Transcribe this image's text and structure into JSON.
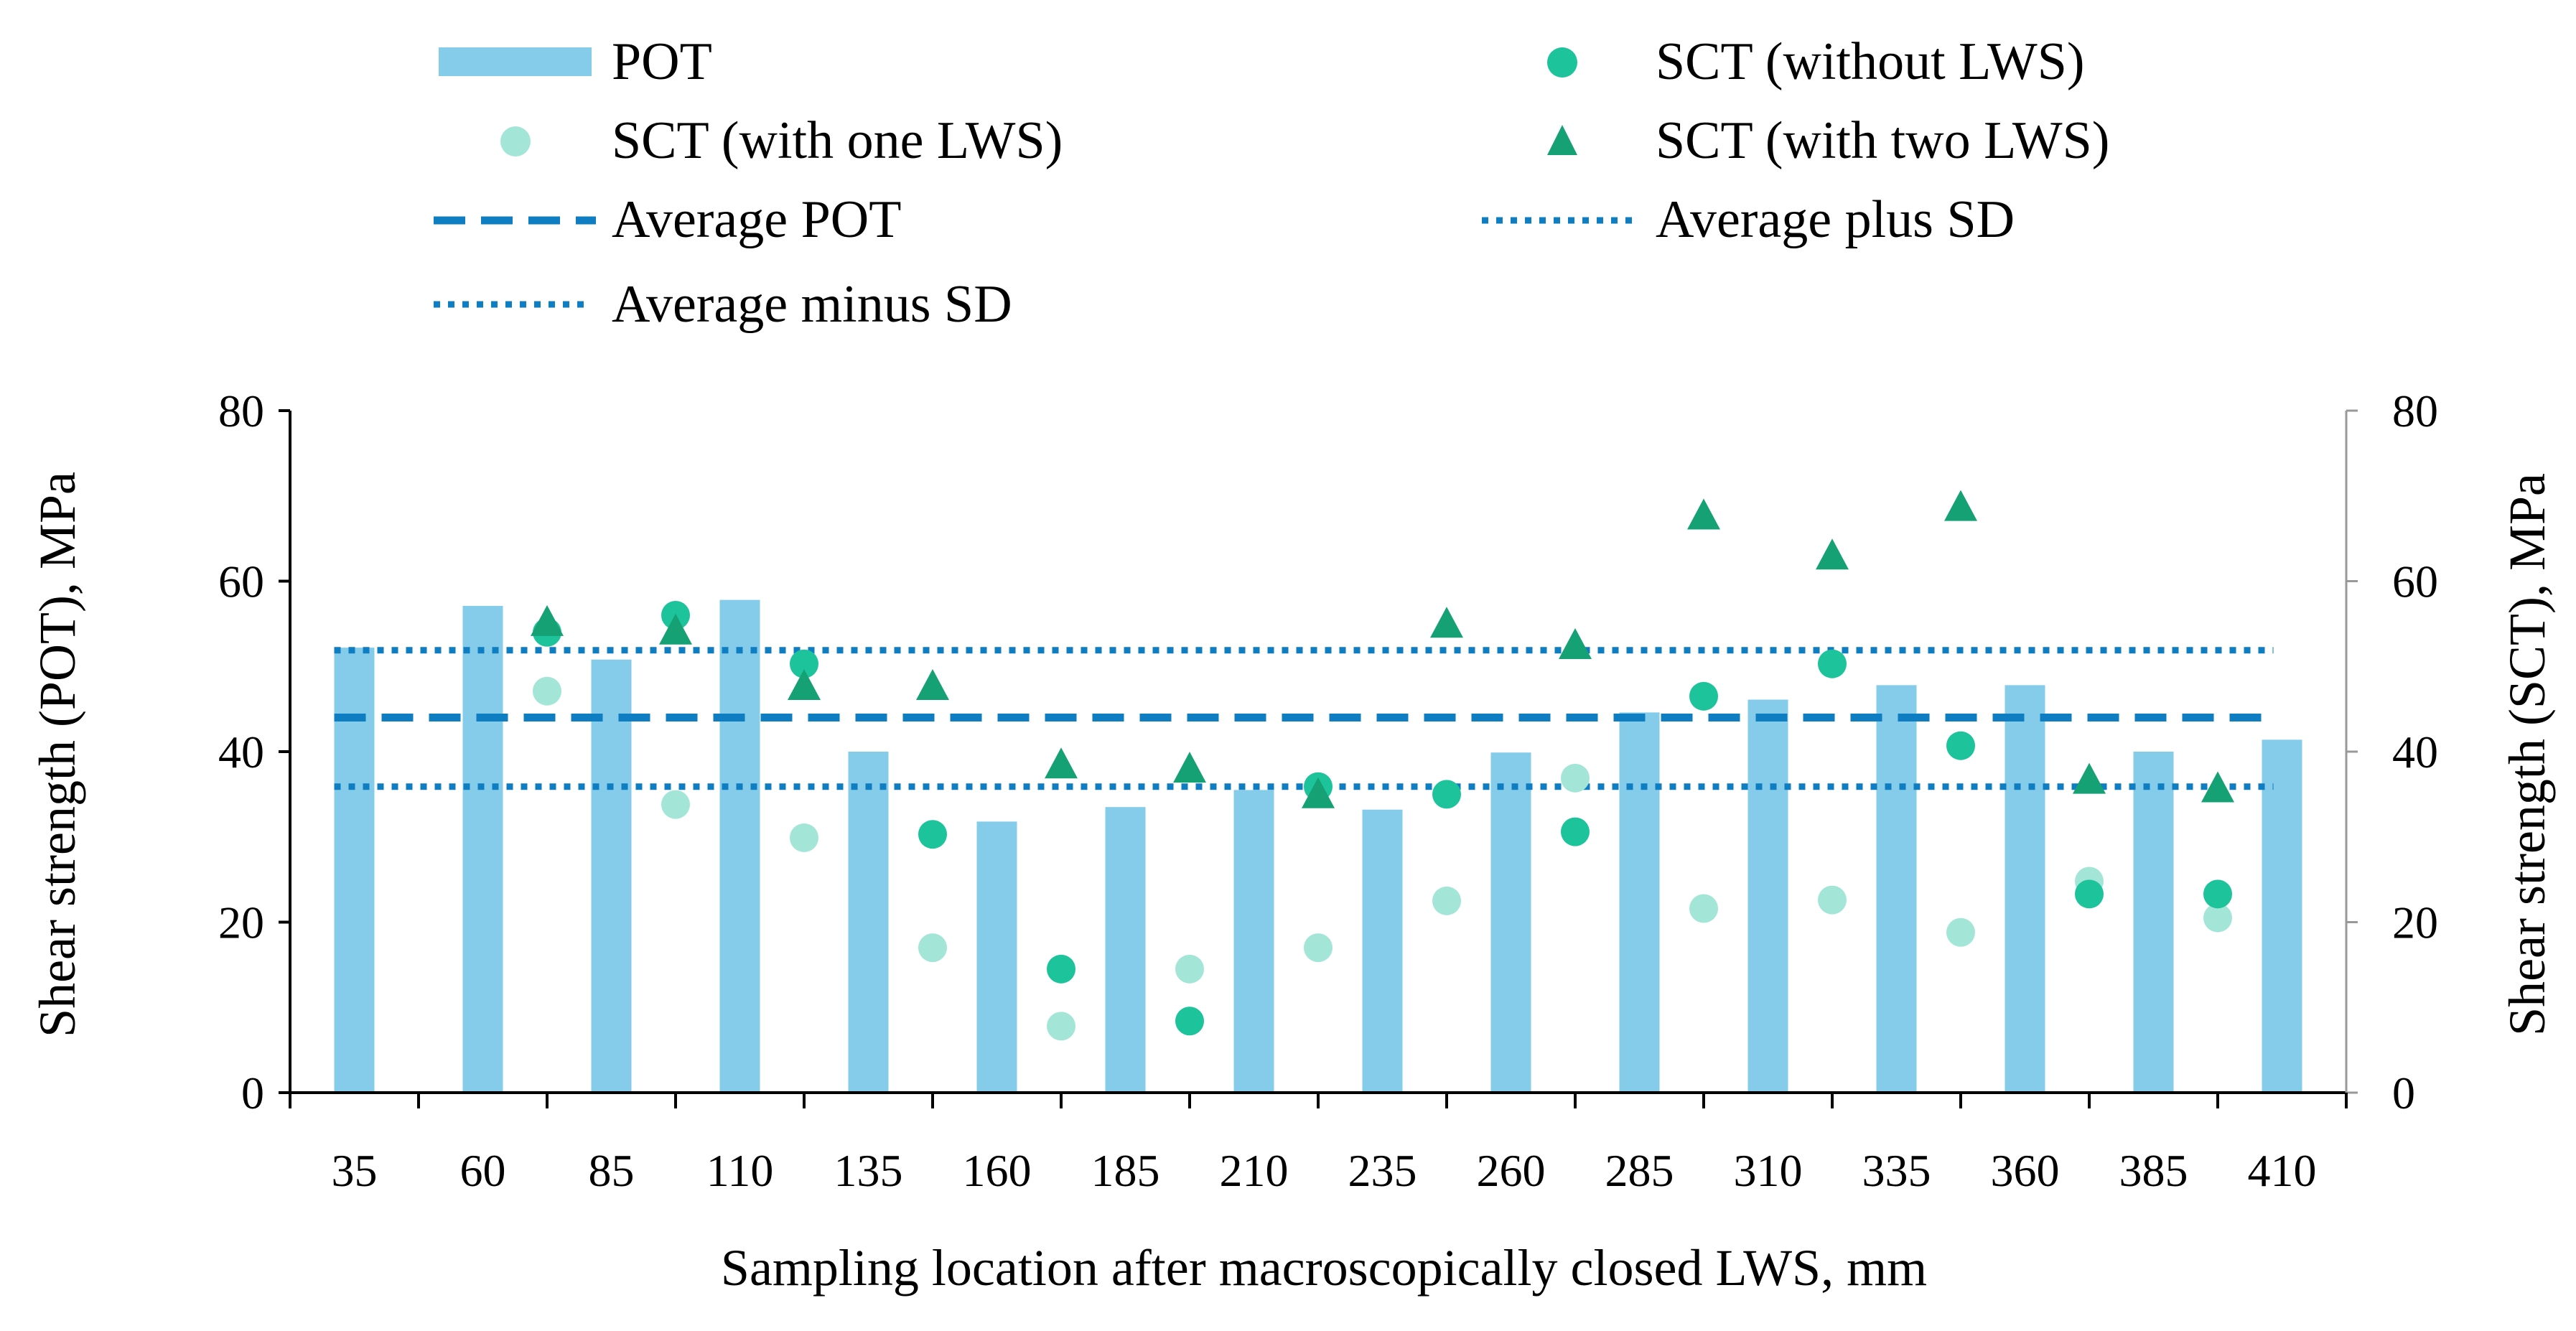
{
  "chart_data": {
    "type": "bar",
    "colors": {
      "pot": "#85CCEA",
      "sct_without": "#1DC39A",
      "sct_one": "#A3E6D8",
      "sct_two": "#16A175",
      "average": "#0E7DC2",
      "sd": "#0E7DC2",
      "axis": "#000000",
      "right_axis": "#999999"
    },
    "categories": [
      "35",
      "60",
      "85",
      "110",
      "135",
      "160",
      "185",
      "210",
      "235",
      "260",
      "285",
      "310",
      "335",
      "360",
      "385",
      "410"
    ],
    "xlabel": "Sampling location after macroscopically closed LWS, mm",
    "ylabel_left": "Shear strength (POT), MPa",
    "ylabel_right": "Shear strength (SCT), MPa",
    "ylim": [
      0,
      80
    ],
    "yticks": [
      "0",
      "20",
      "40",
      "60",
      "80"
    ],
    "legend": {
      "pot": "POT",
      "sct_without": "SCT (without LWS)",
      "sct_one": "SCT (with one LWS)",
      "sct_two": "SCT (with two LWS)",
      "average": "Average POT",
      "plus_sd": "Average plus SD",
      "minus_sd": "Average minus SD"
    },
    "pot": {
      "x": [
        35,
        60,
        85,
        110,
        135,
        160,
        185,
        210,
        235,
        260,
        285,
        310,
        335,
        360,
        385,
        410
      ],
      "values": [
        52.2,
        57.1,
        50.8,
        57.8,
        40.0,
        31.8,
        33.5,
        35.5,
        33.2,
        39.9,
        44.6,
        46.1,
        47.8,
        47.8,
        40.0,
        41.4
      ]
    },
    "sct_without": {
      "x": [
        72.5,
        97.5,
        122.5,
        147.5,
        172.5,
        197.5,
        222.5,
        247.5,
        272.5,
        297.5,
        322.5,
        347.5,
        372.5,
        397.5
      ],
      "values": [
        54.0,
        56.0,
        50.3,
        30.3,
        14.5,
        8.4,
        35.9,
        35.0,
        30.6,
        46.5,
        50.3,
        40.7,
        23.3,
        23.3
      ]
    },
    "sct_one": {
      "x": [
        72.5,
        97.5,
        122.5,
        147.5,
        172.5,
        197.5,
        222.5,
        247.5,
        272.5,
        297.5,
        322.5,
        347.5,
        372.5,
        397.5
      ],
      "values": [
        47.1,
        33.8,
        29.9,
        17.0,
        7.8,
        14.5,
        17.0,
        22.5,
        36.9,
        21.6,
        22.6,
        18.8,
        24.8,
        20.5
      ]
    },
    "sct_two": {
      "x": [
        72.5,
        97.5,
        122.5,
        147.5,
        172.5,
        197.5,
        222.5,
        247.5,
        272.5,
        297.5,
        322.5,
        347.5,
        372.5,
        397.5
      ],
      "values": [
        55.0,
        54.0,
        47.5,
        47.5,
        38.3,
        37.8,
        34.8,
        54.8,
        52.3,
        67.5,
        62.8,
        68.5,
        36.5,
        35.5
      ]
    },
    "average": 44.0,
    "plus_sd": 51.9,
    "minus_sd": 35.9
  }
}
